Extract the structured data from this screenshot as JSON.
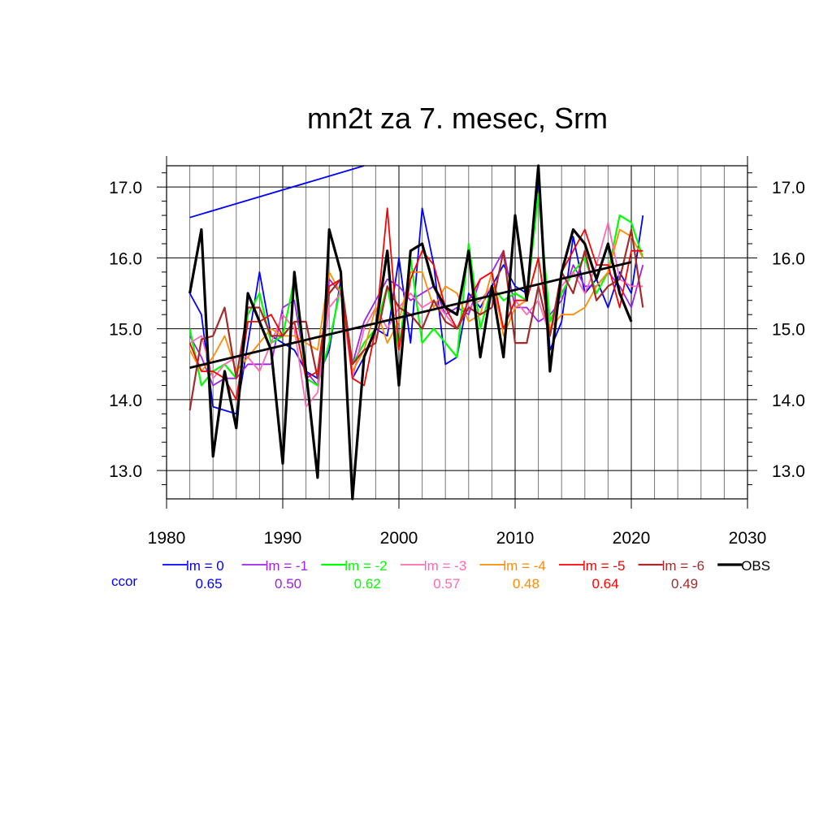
{
  "chart_data": {
    "type": "line",
    "title": "mn2t za 7. mesec, Srm",
    "xlim": [
      1980,
      2030
    ],
    "ylim": [
      12.6,
      17.3
    ],
    "x_ticks": [
      1980,
      1990,
      2000,
      2010,
      2020,
      2030
    ],
    "x_tick_labels": [
      "1980",
      "1990",
      "2000",
      "2010",
      "2020",
      "2030"
    ],
    "y_ticks": [
      13,
      14,
      15,
      16,
      17
    ],
    "y_tick_labels": [
      "13.0",
      "14.0",
      "15.0",
      "16.0",
      "17.0"
    ],
    "grid": true,
    "legend_position": "below",
    "ccor_label": "ccor",
    "ccor_color": "#0000ff",
    "series": [
      {
        "name": "lm = 0",
        "ccor": "0.65",
        "color": "#0000ff",
        "width": 1.8,
        "x": [
          1982,
          1983,
          1984,
          1985,
          1986,
          1987,
          1988,
          1989,
          1990,
          1991,
          1992,
          1993,
          1994,
          1995,
          1996,
          1997,
          1998,
          1999,
          2000,
          2001,
          2002,
          2003,
          2004,
          2005,
          2006,
          2007,
          2008,
          2009,
          2010,
          2011,
          2012,
          2013,
          2014,
          2015,
          2016,
          2017,
          2018,
          2019,
          2020,
          2021
        ],
        "values": [
          15.5,
          15.2,
          13.9,
          13.85,
          13.8,
          14.8,
          15.8,
          14.9,
          14.8,
          14.7,
          14.4,
          14.3,
          14.7,
          15.7,
          14.3,
          14.6,
          15.0,
          14.9,
          16.0,
          14.8,
          16.7,
          15.9,
          14.5,
          14.6,
          15.5,
          15.3,
          15.6,
          15.9,
          15.6,
          15.5,
          17.1,
          14.7,
          15.1,
          16.3,
          15.5,
          15.7,
          15.3,
          15.8,
          15.5,
          16.6
        ]
      },
      {
        "name": "lm = -1",
        "ccor": "0.50",
        "color": "#a020f0",
        "width": 1.8,
        "x": [
          1982,
          1983,
          1984,
          1985,
          1986,
          1987,
          1988,
          1989,
          1990,
          1991,
          1992,
          1993,
          1994,
          1995,
          1996,
          1997,
          1998,
          1999,
          2000,
          2001,
          2002,
          2003,
          2004,
          2005,
          2006,
          2007,
          2008,
          2009,
          2010,
          2011,
          2012,
          2013,
          2014,
          2015,
          2016,
          2017,
          2018,
          2019,
          2020,
          2021
        ],
        "values": [
          14.9,
          14.6,
          14.2,
          14.3,
          14.3,
          14.5,
          14.5,
          14.5,
          15.3,
          15.4,
          14.4,
          14.2,
          15.7,
          15.5,
          14.5,
          15.1,
          15.4,
          15.7,
          15.6,
          15.4,
          15.5,
          15.6,
          15.2,
          15.3,
          15.2,
          15.7,
          15.8,
          16.1,
          15.3,
          15.3,
          15.1,
          15.2,
          15.4,
          15.9,
          15.6,
          15.6,
          15.8,
          15.6,
          15.3,
          15.9
        ]
      },
      {
        "name": "lm = -2",
        "ccor": "0.62",
        "color": "#00ff00",
        "width": 2.2,
        "x": [
          1982,
          1983,
          1984,
          1985,
          1986,
          1987,
          1988,
          1989,
          1990,
          1991,
          1992,
          1993,
          1994,
          1995,
          1996,
          1997,
          1998,
          1999,
          2000,
          2001,
          2002,
          2003,
          2004,
          2005,
          2006,
          2007,
          2008,
          2009,
          2010,
          2011,
          2012,
          2013,
          2014,
          2015,
          2016,
          2017,
          2018,
          2019,
          2020,
          2021
        ],
        "values": [
          15.0,
          14.2,
          14.4,
          14.5,
          14.3,
          15.2,
          15.5,
          14.8,
          14.9,
          15.7,
          14.3,
          14.2,
          14.8,
          15.6,
          14.5,
          14.8,
          15.0,
          15.6,
          14.7,
          16.0,
          14.8,
          15.0,
          14.8,
          14.6,
          16.2,
          15.0,
          15.6,
          15.4,
          15.5,
          15.4,
          16.9,
          15.1,
          15.5,
          15.8,
          16.0,
          15.5,
          15.8,
          16.6,
          16.5,
          16.0
        ]
      },
      {
        "name": "lm = -3",
        "ccor": "0.57",
        "color": "#ff69b4",
        "width": 1.8,
        "x": [
          1982,
          1983,
          1984,
          1985,
          1986,
          1987,
          1988,
          1989,
          1990,
          1991,
          1992,
          1993,
          1994,
          1995,
          1996,
          1997,
          1998,
          1999,
          2000,
          2001,
          2002,
          2003,
          2004,
          2005,
          2006,
          2007,
          2008,
          2009,
          2010,
          2011,
          2012,
          2013,
          2014,
          2015,
          2016,
          2017,
          2018,
          2019,
          2020,
          2021
        ],
        "values": [
          14.8,
          14.9,
          14.3,
          14.5,
          14.6,
          14.6,
          14.4,
          14.8,
          15.2,
          15.0,
          13.9,
          14.1,
          15.3,
          15.5,
          14.3,
          15.0,
          15.3,
          15.0,
          15.3,
          15.5,
          15.3,
          15.4,
          15.2,
          15.0,
          15.3,
          15.4,
          15.6,
          15.0,
          15.4,
          15.2,
          15.4,
          14.9,
          15.6,
          15.8,
          15.5,
          15.9,
          16.5,
          15.7,
          15.6,
          15.6
        ]
      },
      {
        "name": "lm = -4",
        "ccor": "0.48",
        "color": "#ff8c00",
        "width": 1.8,
        "x": [
          1982,
          1983,
          1984,
          1985,
          1986,
          1987,
          1988,
          1989,
          1990,
          1991,
          1992,
          1993,
          1994,
          1995,
          1996,
          1997,
          1998,
          1999,
          2000,
          2001,
          2002,
          2003,
          2004,
          2005,
          2006,
          2007,
          2008,
          2009,
          2010,
          2011,
          2012,
          2013,
          2014,
          2015,
          2016,
          2017,
          2018,
          2019,
          2020,
          2021
        ],
        "values": [
          14.7,
          14.4,
          14.6,
          14.9,
          14.4,
          14.6,
          14.8,
          15.0,
          14.9,
          14.9,
          14.8,
          14.7,
          15.8,
          15.5,
          14.4,
          14.7,
          15.3,
          14.8,
          15.1,
          15.8,
          15.8,
          15.3,
          15.6,
          15.5,
          15.1,
          15.2,
          15.8,
          14.9,
          15.3,
          15.4,
          16.0,
          15.0,
          15.2,
          15.2,
          15.3,
          15.6,
          15.8,
          16.4,
          16.3,
          16.0
        ]
      },
      {
        "name": "lm = -5",
        "ccor": "0.64",
        "color": "#ff0000",
        "width": 1.8,
        "x": [
          1982,
          1983,
          1984,
          1985,
          1986,
          1987,
          1988,
          1989,
          1990,
          1991,
          1992,
          1993,
          1994,
          1995,
          1996,
          1997,
          1998,
          1999,
          2000,
          2001,
          2002,
          2003,
          2004,
          2005,
          2006,
          2007,
          2008,
          2009,
          2010,
          2011,
          2012,
          2013,
          2014,
          2015,
          2016,
          2017,
          2018,
          2019,
          2020,
          2021
        ],
        "values": [
          14.8,
          14.4,
          14.4,
          14.3,
          14.0,
          15.1,
          15.1,
          15.2,
          14.9,
          15.1,
          14.3,
          14.4,
          15.6,
          15.7,
          14.3,
          14.2,
          15.0,
          16.7,
          14.7,
          15.7,
          16.1,
          15.9,
          15.3,
          15.0,
          15.4,
          15.7,
          15.8,
          15.0,
          15.4,
          15.4,
          16.0,
          14.9,
          15.8,
          16.1,
          16.4,
          15.9,
          15.9,
          15.3,
          16.1,
          16.1
        ]
      },
      {
        "name": "lm = -6",
        "ccor": "0.49",
        "color": "#a52a2a",
        "width": 2.2,
        "x": [
          1982,
          1983,
          1984,
          1985,
          1986,
          1987,
          1988,
          1989,
          1990,
          1991,
          1992,
          1993,
          1994,
          1995,
          1996,
          1997,
          1998,
          1999,
          2000,
          2001,
          2002,
          2003,
          2004,
          2005,
          2006,
          2007,
          2008,
          2009,
          2010,
          2011,
          2012,
          2013,
          2014,
          2015,
          2016,
          2017,
          2018,
          2019,
          2020,
          2021
        ],
        "values": [
          13.85,
          14.85,
          14.9,
          15.3,
          14.3,
          15.3,
          15.3,
          14.9,
          14.9,
          15.1,
          15.1,
          14.3,
          15.5,
          15.7,
          14.5,
          14.7,
          14.8,
          15.6,
          15.3,
          15.2,
          15.0,
          15.4,
          15.1,
          15.0,
          15.3,
          15.2,
          15.3,
          16.1,
          14.8,
          14.8,
          15.6,
          14.9,
          15.8,
          15.5,
          16.1,
          15.4,
          15.6,
          15.7,
          16.4,
          15.3
        ]
      },
      {
        "name": "OBS",
        "ccor": "",
        "color": "#000000",
        "width": 3.2,
        "x": [
          1982,
          1983,
          1984,
          1985,
          1986,
          1987,
          1988,
          1989,
          1990,
          1991,
          1992,
          1993,
          1994,
          1995,
          1996,
          1997,
          1998,
          1999,
          2000,
          2001,
          2002,
          2003,
          2004,
          2005,
          2006,
          2007,
          2008,
          2009,
          2010,
          2011,
          2012,
          2013,
          2014,
          2015,
          2016,
          2017,
          2018,
          2019,
          2020
        ],
        "values": [
          15.5,
          16.4,
          13.2,
          14.4,
          13.6,
          15.5,
          15.1,
          14.7,
          13.1,
          15.8,
          14.4,
          12.9,
          16.4,
          15.8,
          12.6,
          14.6,
          15.0,
          16.1,
          14.2,
          16.1,
          16.2,
          15.6,
          15.3,
          15.2,
          16.1,
          14.6,
          15.6,
          14.6,
          16.6,
          15.4,
          17.3,
          14.4,
          15.8,
          16.4,
          16.2,
          15.7,
          16.2,
          15.5,
          15.1
        ]
      }
    ],
    "trend_lines": [
      {
        "color": "#000000",
        "width": 2.8,
        "x": [
          1982,
          2020
        ],
        "values": [
          14.45,
          15.94
        ]
      },
      {
        "color": "#0000ff",
        "width": 1.8,
        "x": [
          1982,
          1997
        ],
        "values": [
          16.57,
          17.3
        ]
      }
    ]
  }
}
